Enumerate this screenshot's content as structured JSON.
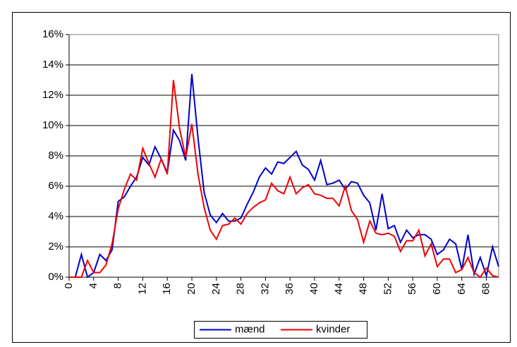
{
  "chart_data": {
    "type": "line",
    "x": [
      0,
      1,
      2,
      3,
      4,
      5,
      6,
      7,
      8,
      9,
      10,
      11,
      12,
      13,
      14,
      15,
      16,
      17,
      18,
      19,
      20,
      21,
      22,
      23,
      24,
      25,
      26,
      27,
      28,
      29,
      30,
      31,
      32,
      33,
      34,
      35,
      36,
      37,
      38,
      39,
      40,
      41,
      42,
      43,
      44,
      45,
      46,
      47,
      48,
      49,
      50,
      51,
      52,
      53,
      54,
      55,
      56,
      57,
      58,
      59,
      60,
      61,
      62,
      63,
      64,
      65,
      66,
      67,
      68,
      69,
      70
    ],
    "series": [
      {
        "name": "mænd",
        "color": "#0000cc",
        "values": [
          0,
          0,
          1.5,
          0,
          0.3,
          1.5,
          1.1,
          1.8,
          5.0,
          5.3,
          6.0,
          6.6,
          7.9,
          7.4,
          8.6,
          7.8,
          6.9,
          9.7,
          9.0,
          7.7,
          13.4,
          9.2,
          5.6,
          4.1,
          3.6,
          4.2,
          3.7,
          3.7,
          3.9,
          4.8,
          5.6,
          6.6,
          7.2,
          6.8,
          7.6,
          7.5,
          7.9,
          8.3,
          7.4,
          7.1,
          6.4,
          7.7,
          6.1,
          6.2,
          6.4,
          5.8,
          6.3,
          6.2,
          5.4,
          4.9,
          3.1,
          5.5,
          3.2,
          3.4,
          2.3,
          3.1,
          2.6,
          2.8,
          2.8,
          2.5,
          1.5,
          1.8,
          2.5,
          2.2,
          0.5,
          2.8,
          0.2,
          1.3,
          0.1,
          2.0,
          0.7
        ]
      },
      {
        "name": "kvinder",
        "color": "#ee0000",
        "values": [
          0,
          0,
          0,
          1.1,
          0.3,
          0.3,
          0.8,
          2.2,
          4.5,
          5.8,
          6.8,
          6.4,
          8.5,
          7.5,
          6.6,
          7.8,
          6.8,
          13.0,
          9.8,
          7.9,
          10.1,
          6.8,
          4.6,
          3.1,
          2.5,
          3.4,
          3.5,
          3.9,
          3.5,
          4.2,
          4.6,
          4.9,
          5.1,
          6.2,
          5.7,
          5.5,
          6.6,
          5.5,
          5.9,
          6.1,
          5.5,
          5.4,
          5.2,
          5.2,
          4.7,
          6.0,
          4.4,
          3.8,
          2.3,
          3.7,
          2.9,
          2.8,
          2.9,
          2.7,
          1.7,
          2.4,
          2.4,
          3.1,
          1.4,
          2.2,
          0.7,
          1.2,
          1.2,
          0.3,
          0.5,
          1.3,
          0.3,
          0,
          0.6,
          0.1,
          0
        ]
      }
    ],
    "xlim": [
      0,
      70
    ],
    "xticks": [
      0,
      4,
      8,
      12,
      16,
      20,
      24,
      28,
      32,
      36,
      40,
      44,
      48,
      52,
      56,
      60,
      64,
      68
    ],
    "ylim": [
      0,
      16
    ],
    "yticks": [
      {
        "value": 0,
        "label": "0%"
      },
      {
        "value": 2,
        "label": "2%"
      },
      {
        "value": 4,
        "label": "4%"
      },
      {
        "value": 6,
        "label": "6%"
      },
      {
        "value": 8,
        "label": "8%"
      },
      {
        "value": 10,
        "label": "10%"
      },
      {
        "value": 12,
        "label": "12%"
      },
      {
        "value": 14,
        "label": "14%"
      },
      {
        "value": 16,
        "label": "16%"
      }
    ],
    "grid": true,
    "legend": "bottom"
  }
}
